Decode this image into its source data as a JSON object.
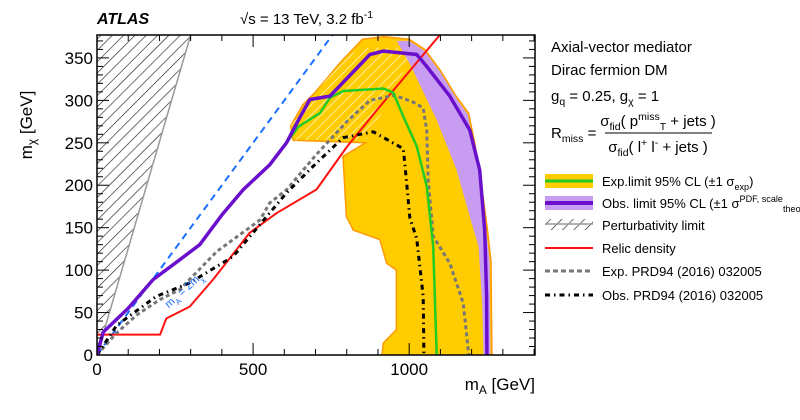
{
  "header": {
    "experiment": "ATLAS",
    "energy": "√s = 13 TeV, 3.2 fb^{-1}"
  },
  "info": {
    "line1": "Axial-vector mediator",
    "line2": "Dirac fermion DM",
    "line3": "g_{q} = 0.25, g_{χ} = 1",
    "rmiss_lhs": "R_{miss} =",
    "rmiss_num": "σ_{fid}( p^{miss}_{T} + jets )",
    "rmiss_den": "σ_{fid}( l^{+} l^{-} + jets )"
  },
  "chart_data": {
    "type": "line",
    "xlabel": "m_{A} [GeV]",
    "ylabel": "m_{χ} [GeV]",
    "xlim": [
      0,
      1403
    ],
    "ylim": [
      0,
      377
    ],
    "xticks": [
      0,
      500,
      1000
    ],
    "yticks": [
      0,
      50,
      100,
      150,
      200,
      250,
      300,
      350
    ],
    "grid": false,
    "legend_position": "right",
    "annotations": [
      {
        "text": "m_{A} = 2m_{χ}",
        "color": "#1a6fff"
      }
    ],
    "colors": {
      "exp_band": "#ffcc00",
      "exp_band_edge": "#ff9900",
      "exp": "#22cc22",
      "obs_band": "#c89cf0",
      "obs": "#6a0fcc",
      "relic": "#ff1111",
      "diag": "#1a6fff",
      "pert": "#999999",
      "old_exp": "#777777",
      "old_obs": "#000000"
    },
    "regions": {
      "exp_band": [
        [
          628,
          253
        ],
        [
          620,
          270
        ],
        [
          660,
          295
        ],
        [
          700,
          310
        ],
        [
          780,
          345
        ],
        [
          850,
          372
        ],
        [
          920,
          375
        ],
        [
          1000,
          372
        ],
        [
          1050,
          360
        ],
        [
          1100,
          335
        ],
        [
          1150,
          305
        ],
        [
          1190,
          285
        ],
        [
          1210,
          250
        ],
        [
          1230,
          205
        ],
        [
          1250,
          150
        ],
        [
          1262,
          110
        ],
        [
          1265,
          0
        ],
        [
          913,
          0
        ],
        [
          917,
          14
        ],
        [
          959,
          30
        ],
        [
          959,
          100
        ],
        [
          928,
          108
        ],
        [
          906,
          136
        ],
        [
          821,
          147
        ],
        [
          799,
          163
        ],
        [
          788,
          234
        ],
        [
          860,
          250
        ]
      ],
      "obs_band": [
        [
          960,
          370
        ],
        [
          1000,
          370
        ],
        [
          1050,
          358
        ],
        [
          1100,
          333
        ],
        [
          1150,
          303
        ],
        [
          1188,
          283
        ],
        [
          1206,
          250
        ],
        [
          1226,
          205
        ],
        [
          1246,
          150
        ],
        [
          1258,
          110
        ],
        [
          1260,
          0
        ],
        [
          1238,
          0
        ],
        [
          1234,
          60
        ],
        [
          1222,
          128
        ],
        [
          1194,
          163
        ],
        [
          1152,
          218
        ],
        [
          1088,
          277
        ],
        [
          1002,
          343
        ]
      ],
      "hatched": [
        [
          628,
          253
        ],
        [
          620,
          270
        ],
        [
          650,
          290
        ],
        [
          700,
          310
        ],
        [
          800,
          352
        ],
        [
          850,
          362
        ],
        [
          975,
          362
        ],
        [
          1000,
          345
        ],
        [
          960,
          320
        ],
        [
          920,
          290
        ],
        [
          863,
          254
        ]
      ],
      "perturbativity_limit": [
        [
          0,
          0
        ],
        [
          300,
          377
        ]
      ]
    },
    "series": [
      {
        "name": "Exp.limit 95% CL (±1 σ_{exp})",
        "key": "exp",
        "points": [
          [
            0,
            0
          ],
          [
            20,
            27
          ],
          [
            100,
            55
          ],
          [
            180,
            89
          ],
          [
            250,
            108
          ],
          [
            329,
            130
          ],
          [
            400,
            165
          ],
          [
            469,
            195
          ],
          [
            553,
            224
          ],
          [
            607,
            250
          ],
          [
            645,
            269
          ],
          [
            714,
            285
          ],
          [
            746,
            303
          ],
          [
            789,
            311
          ],
          [
            917,
            314
          ],
          [
            949,
            309
          ],
          [
            981,
            281
          ],
          [
            1024,
            246
          ],
          [
            1056,
            199
          ],
          [
            1077,
            128
          ],
          [
            1088,
            0
          ]
        ]
      },
      {
        "name": "Obs. limit 95% CL (±1 σ^{PDF, scale}_{theory})",
        "key": "obs",
        "points": [
          [
            0,
            0
          ],
          [
            20,
            27
          ],
          [
            100,
            55
          ],
          [
            180,
            89
          ],
          [
            250,
            108
          ],
          [
            329,
            130
          ],
          [
            400,
            165
          ],
          [
            469,
            195
          ],
          [
            553,
            224
          ],
          [
            607,
            250
          ],
          [
            650,
            280
          ],
          [
            682,
            301
          ],
          [
            746,
            305
          ],
          [
            874,
            354
          ],
          [
            917,
            358
          ],
          [
            1024,
            354
          ],
          [
            1056,
            340
          ],
          [
            1130,
            305
          ],
          [
            1194,
            265
          ],
          [
            1226,
            218
          ],
          [
            1242,
            147
          ],
          [
            1248,
            69
          ],
          [
            1249,
            0
          ]
        ]
      },
      {
        "name": "Perturbativity limit",
        "key": "pert",
        "points": [
          [
            0,
            0
          ],
          [
            300,
            377
          ]
        ]
      },
      {
        "name": "Relic density",
        "key": "relic",
        "points": [
          [
            0,
            24
          ],
          [
            202,
            24
          ],
          [
            222,
            43
          ],
          [
            297,
            57
          ],
          [
            372,
            89
          ],
          [
            489,
            144
          ],
          [
            575,
            167
          ],
          [
            703,
            195
          ],
          [
            800,
            245
          ],
          [
            900,
            290
          ],
          [
            1098,
            377
          ]
        ]
      },
      {
        "name": "Exp. PRD94 (2016) 032005",
        "key": "old_exp",
        "points": [
          [
            0,
            0
          ],
          [
            60,
            25
          ],
          [
            127,
            47
          ],
          [
            200,
            65
          ],
          [
            265,
            77
          ],
          [
            384,
            122
          ],
          [
            522,
            159
          ],
          [
            553,
            179
          ],
          [
            608,
            195
          ],
          [
            700,
            235
          ],
          [
            800,
            275
          ],
          [
            874,
            300
          ],
          [
            953,
            306
          ],
          [
            1013,
            298
          ],
          [
            1045,
            291
          ],
          [
            1056,
            265
          ],
          [
            1061,
            206
          ],
          [
            1077,
            140
          ],
          [
            1130,
            108
          ],
          [
            1173,
            61
          ],
          [
            1191,
            0
          ]
        ]
      },
      {
        "name": "Obs. PRD94 (2016) 032005",
        "key": "old_obs",
        "points": [
          [
            0,
            0
          ],
          [
            63,
            35
          ],
          [
            190,
            69
          ],
          [
            297,
            85
          ],
          [
            436,
            116
          ],
          [
            607,
            191
          ],
          [
            700,
            225
          ],
          [
            788,
            256
          ],
          [
            885,
            263
          ],
          [
            981,
            243
          ],
          [
            991,
            206
          ],
          [
            1002,
            162
          ],
          [
            1024,
            137
          ],
          [
            1045,
            69
          ],
          [
            1047,
            0
          ]
        ]
      },
      {
        "key": "diag",
        "points": [
          [
            0,
            0
          ],
          [
            754,
            377
          ]
        ]
      }
    ]
  }
}
